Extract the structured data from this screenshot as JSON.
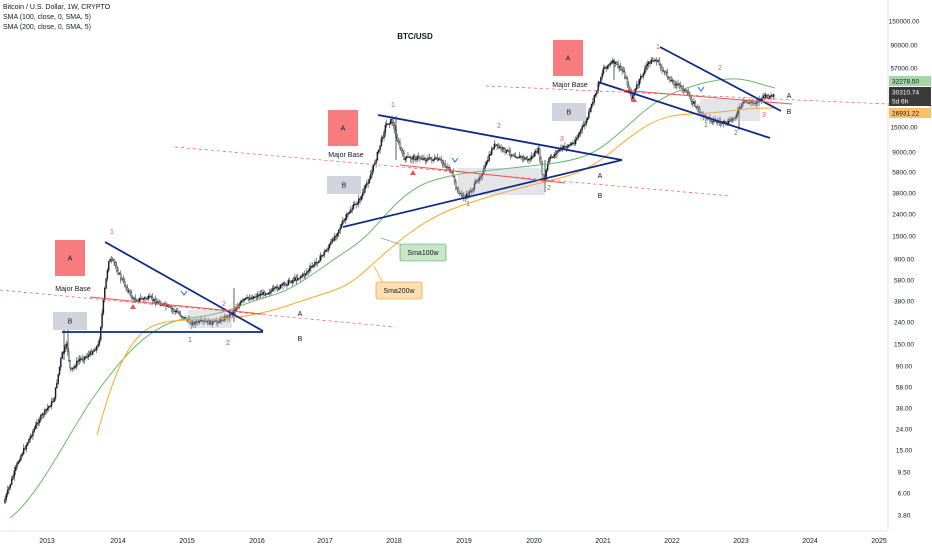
{
  "legend": {
    "symbol": "Bitcoin / U.S. Dollar, 1W, CRYPTO",
    "sma100": "SMA (100, close, 0, SMA, 5)",
    "sma200": "SMA (200, close, 0, SMA, 5)"
  },
  "chart_data": {
    "type": "candlestick",
    "title": "BTC/USD",
    "x_tick_labels": [
      "2013",
      "2014",
      "2015",
      "2016",
      "2017",
      "2018",
      "2019",
      "2020",
      "2021",
      "2022",
      "2023",
      "2024",
      "2025"
    ],
    "y_tick_labels": [
      "150000.00",
      "90000.00",
      "57000.00",
      "15000.00",
      "9000.00",
      "5800.00",
      "3800.00",
      "2400.00",
      "1500.00",
      "900.00",
      "580.00",
      "380.00",
      "240.00",
      "150.00",
      "90.00",
      "58.00",
      "38.00",
      "24.00",
      "15.00",
      "9.50",
      "6.00",
      "3.80"
    ],
    "y_scale": "log",
    "price_labels": [
      {
        "text": "32278.50",
        "color": "#a5d6a7"
      },
      {
        "text": "30310.74",
        "color": "#3a3a3a"
      },
      {
        "text": "5d 6h",
        "color": "#3a3a3a"
      },
      {
        "text": "26931.22",
        "color": "#f5c26b"
      }
    ],
    "moving_averages": [
      {
        "name": "Sma100w",
        "color": "#66bb6a"
      },
      {
        "name": "Sma200w",
        "color": "#ffa726"
      }
    ],
    "zone_boxes": [
      "A",
      "B",
      "A",
      "B",
      "A",
      "B"
    ],
    "zone_box_colors": {
      "A": "#f77c80",
      "B": "#d1d4dc"
    },
    "zone_texts": [
      "Major Base",
      "Major Base",
      "Major Base"
    ],
    "point_labels": [
      {
        "text": "1",
        "color": "#ef5350"
      },
      {
        "text": "2",
        "color": "#ef5350"
      },
      {
        "text": "3",
        "color": "#ef5350"
      },
      {
        "text": "1",
        "color": "#388e3c"
      },
      {
        "text": "2",
        "color": "#388e3c"
      },
      {
        "text": "1",
        "color": "#ef5350"
      },
      {
        "text": "2",
        "color": "#ef5350"
      },
      {
        "text": "3",
        "color": "#ef5350"
      },
      {
        "text": "1",
        "color": "#388e3c"
      },
      {
        "text": "2",
        "color": "#388e3c"
      },
      {
        "text": "1",
        "color": "#ef5350"
      },
      {
        "text": "2",
        "color": "#ef5350"
      },
      {
        "text": "3",
        "color": "#ef5350"
      },
      {
        "text": "1",
        "color": "#388e3c"
      },
      {
        "text": "2",
        "color": "#388e3c"
      },
      {
        "text": "A",
        "color": "#131722"
      },
      {
        "text": "B",
        "color": "#131722"
      },
      {
        "text": "A",
        "color": "#131722"
      },
      {
        "text": "B",
        "color": "#131722"
      },
      {
        "text": "A",
        "color": "#131722"
      },
      {
        "text": "B",
        "color": "#131722"
      }
    ],
    "callouts": [
      {
        "text": "Sma100w",
        "fill": "#c8e6c9",
        "stroke": "#43a047"
      },
      {
        "text": "Sma200w",
        "fill": "#ffe0b2",
        "stroke": "#fb8c00"
      }
    ],
    "trendline_color": "#0d2a8a",
    "support_line_color": "#ef5350",
    "candle_up_color": "#131722",
    "candle_down_color": "#131722"
  }
}
